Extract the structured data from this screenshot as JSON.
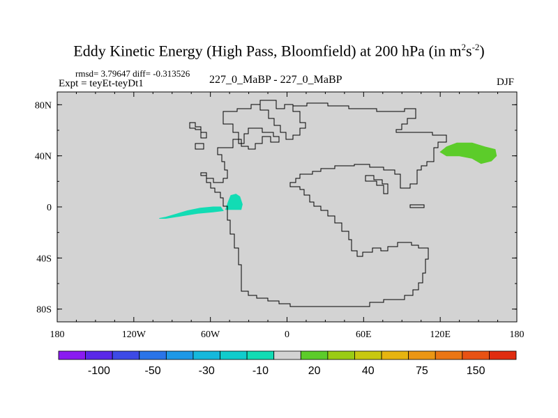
{
  "chart_data": {
    "type": "heatmap",
    "title": "Eddy Kinetic Energy (High Pass, Bloomfield) at 200 hPa (in m",
    "title_units_sup1": "2",
    "title_units_mid": "s",
    "title_units_sup2": "-2",
    "title_units_end": ")",
    "stats_text": "rmsd= 3.79647  diff= -0.313526",
    "left_label": "Expt = teyEt-teyDt1",
    "center_label": "227_0_MaBP - 227_0_MaBP",
    "right_label": "DJF",
    "x_range": [
      -180,
      180
    ],
    "y_range": [
      -90,
      90
    ],
    "x_ticks": [
      {
        "value": -180,
        "label": "180"
      },
      {
        "value": -120,
        "label": "120W"
      },
      {
        "value": -60,
        "label": "60W"
      },
      {
        "value": 0,
        "label": "0"
      },
      {
        "value": 60,
        "label": "60E"
      },
      {
        "value": 120,
        "label": "120E"
      },
      {
        "value": 180,
        "label": "180"
      }
    ],
    "y_ticks": [
      {
        "value": 80,
        "label": "80N"
      },
      {
        "value": 40,
        "label": "40N"
      },
      {
        "value": 0,
        "label": "0"
      },
      {
        "value": -40,
        "label": "40S"
      },
      {
        "value": -80,
        "label": "80S"
      }
    ],
    "background_color": "#d3d3d3",
    "colorbar": {
      "colors": [
        "#8a1bf0",
        "#5a28e8",
        "#3d4ae6",
        "#2a74e8",
        "#1e98e6",
        "#15b8dc",
        "#10cccc",
        "#12dcb4",
        "#d3d3d3",
        "#5ccc2a",
        "#9acc14",
        "#c8c810",
        "#e6b410",
        "#eb9614",
        "#eb7614",
        "#e85214",
        "#e02c10"
      ],
      "tick_labels": [
        "-100",
        "-50",
        "-30",
        "-10",
        "20",
        "40",
        "75",
        "150"
      ],
      "label_positions": [
        1.5,
        3.5,
        5.5,
        7.5,
        9.5,
        11.5,
        13.5,
        15.5
      ]
    },
    "anomaly_regions": [
      {
        "name": "tropical-east-pacific-negative",
        "color": "#12dcb4",
        "level": "-10 to -5",
        "points": [
          [
            -100,
            -9
          ],
          [
            -95,
            -8
          ],
          [
            -88,
            -6
          ],
          [
            -78,
            -3
          ],
          [
            -68,
            -1
          ],
          [
            -58,
            0
          ],
          [
            -52,
            0
          ],
          [
            -50,
            -3
          ],
          [
            -58,
            -4
          ],
          [
            -70,
            -5
          ],
          [
            -82,
            -7
          ],
          [
            -95,
            -9
          ]
        ]
      },
      {
        "name": "tropical-atlantic-negative",
        "color": "#12dcb4",
        "level": "-10 to -5",
        "points": [
          [
            -48,
            -2
          ],
          [
            -46,
            4
          ],
          [
            -44,
            9
          ],
          [
            -40,
            10
          ],
          [
            -37,
            8
          ],
          [
            -35,
            2
          ],
          [
            -36,
            -2
          ],
          [
            -42,
            -2
          ],
          [
            -48,
            -2
          ]
        ]
      },
      {
        "name": "nw-pacific-positive",
        "color": "#5ccc2a",
        "level": "5 to 20",
        "points": [
          [
            120,
            43
          ],
          [
            125,
            47
          ],
          [
            133,
            50
          ],
          [
            145,
            50
          ],
          [
            155,
            47
          ],
          [
            163,
            45
          ],
          [
            164,
            40
          ],
          [
            160,
            36
          ],
          [
            152,
            34
          ],
          [
            145,
            38
          ],
          [
            135,
            40
          ],
          [
            125,
            40
          ]
        ]
      }
    ]
  }
}
